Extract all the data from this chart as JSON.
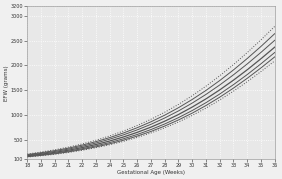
{
  "title": "",
  "xlabel": "Gestational Age (Weeks)",
  "ylabel": "EFW (grams)",
  "xlim": [
    18,
    36
  ],
  "ylim": [
    100,
    3200
  ],
  "xticks": [
    18,
    19,
    20,
    21,
    22,
    23,
    24,
    25,
    26,
    27,
    28,
    29,
    30,
    31,
    32,
    33,
    34,
    35,
    36
  ],
  "yticks": [
    100,
    500,
    1000,
    1500,
    2000,
    2500,
    3000,
    3200
  ],
  "ytick_labels": [
    "100",
    "500",
    "1000",
    "1500",
    "2000",
    "2500",
    "3000",
    "3200"
  ],
  "background_color": "#f0f0f0",
  "plot_bg_color": "#e8e8e8",
  "line_color": "#555555",
  "grid_color": "#ffffff",
  "line_styles": [
    "dotted",
    "solid",
    "solid",
    "solid",
    "solid",
    "solid",
    "dotted"
  ],
  "line_widths": [
    0.7,
    0.7,
    0.7,
    0.9,
    0.7,
    0.7,
    0.7
  ],
  "ages": [
    18,
    19,
    20,
    21,
    22,
    23,
    24,
    25,
    26,
    27,
    28,
    29,
    30,
    31,
    32,
    33,
    34,
    35,
    36
  ],
  "p3": [
    145,
    170,
    200,
    238,
    282,
    334,
    393,
    462,
    542,
    633,
    737,
    855,
    988,
    1136,
    1300,
    1479,
    1671,
    1876,
    2092
  ],
  "p10": [
    152,
    179,
    211,
    250,
    297,
    351,
    413,
    486,
    569,
    664,
    773,
    896,
    1034,
    1188,
    1357,
    1541,
    1739,
    1950,
    2173
  ],
  "p25": [
    161,
    190,
    224,
    265,
    314,
    372,
    438,
    515,
    602,
    702,
    815,
    943,
    1087,
    1246,
    1421,
    1611,
    1815,
    2033,
    2262
  ],
  "p50": [
    172,
    203,
    240,
    284,
    337,
    399,
    470,
    552,
    645,
    751,
    871,
    1006,
    1157,
    1323,
    1505,
    1702,
    1912,
    2136,
    2370
  ],
  "p75": [
    184,
    218,
    258,
    306,
    363,
    429,
    507,
    595,
    695,
    808,
    936,
    1079,
    1238,
    1413,
    1604,
    1810,
    2030,
    2264,
    2509
  ],
  "p90": [
    196,
    232,
    275,
    326,
    387,
    457,
    539,
    633,
    739,
    859,
    993,
    1144,
    1311,
    1494,
    1694,
    1909,
    2140,
    2385,
    2643
  ],
  "p97": [
    207,
    246,
    292,
    347,
    411,
    486,
    573,
    672,
    784,
    910,
    1052,
    1211,
    1387,
    1580,
    1790,
    2017,
    2260,
    2518,
    2790
  ]
}
